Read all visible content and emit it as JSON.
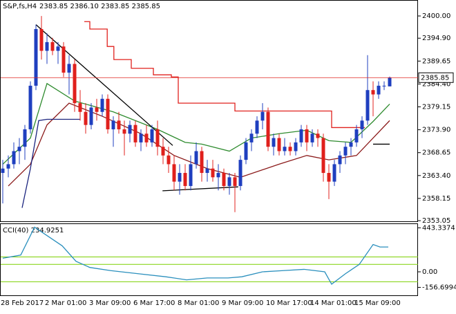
{
  "chart_data": [
    {
      "type": "candlestick",
      "title": "S&P,fs,H4",
      "ohlc_text": "2383.85 2386.10 2383.85 2385.85",
      "categories": [
        "28 Feb 2017",
        null,
        null,
        null,
        null,
        null,
        null,
        null,
        "2 Mar 01:00",
        null,
        null,
        null,
        null,
        null,
        null,
        null,
        "3 Mar 09:00",
        null,
        null,
        null,
        null,
        null,
        null,
        null,
        "6 Mar 17:00",
        null,
        null,
        null,
        null,
        null,
        null,
        null,
        "8 Mar 01:00",
        null,
        null,
        null,
        null,
        null,
        null,
        null,
        "9 Mar 09:00",
        null,
        null,
        null,
        null,
        null,
        null,
        null,
        "10 Mar 17:00",
        null,
        null,
        null,
        null,
        null,
        null,
        null,
        "14 Mar 01:00",
        null,
        null,
        null,
        null,
        null,
        null,
        null,
        "15 Mar 09:00",
        null,
        null,
        null,
        null,
        null,
        null
      ],
      "open": [
        2364,
        2365,
        2366,
        2369,
        2370,
        2374,
        2384,
        2397,
        2392,
        2394,
        2392,
        2393,
        2387,
        2389,
        2380,
        2378,
        2375,
        2379,
        2378,
        2381,
        2374,
        2376,
        2374,
        2373,
        2375,
        2371,
        2373,
        2371,
        2374,
        2370,
        2368,
        2366,
        2362,
        2364,
        2361,
        2366,
        2369,
        2364,
        2365,
        2363,
        2364,
        2361,
        2363,
        2361,
        2367,
        2371,
        2373,
        2376,
        2378,
        2370,
        2372,
        2369,
        2370,
        2369,
        2371,
        2374,
        2371,
        2373,
        2372,
        2364,
        2362,
        2366,
        2368,
        2370,
        2371,
        2374,
        2376,
        2383,
        2382,
        2384,
        2383.85
      ],
      "high": [
        2367,
        2368,
        2371,
        2372,
        2375,
        2385,
        2398,
        2400,
        2396,
        2395,
        2394,
        2394,
        2391,
        2390,
        2383,
        2380,
        2380,
        2381,
        2382,
        2382,
        2377,
        2378,
        2376,
        2376,
        2376,
        2374,
        2375,
        2375,
        2376,
        2372,
        2370,
        2368,
        2366,
        2366,
        2368,
        2371,
        2370,
        2367,
        2367,
        2366,
        2365,
        2364,
        2364,
        2368,
        2372,
        2374,
        2377,
        2380,
        2379,
        2373,
        2373,
        2372,
        2371,
        2372,
        2375,
        2375,
        2374,
        2374,
        2373,
        2366,
        2367,
        2369,
        2371,
        2372,
        2375,
        2377,
        2391,
        2385,
        2385,
        2385,
        2386.1
      ],
      "low": [
        2357,
        2363,
        2365,
        2366,
        2367,
        2373,
        2383,
        2390,
        2389,
        2391,
        2389,
        2386,
        2382,
        2378,
        2376,
        2373,
        2374,
        2376,
        2377,
        2373,
        2370,
        2373,
        2368,
        2371,
        2370,
        2369,
        2370,
        2370,
        2368,
        2366,
        2364,
        2360,
        2359,
        2360,
        2360,
        2365,
        2362,
        2362,
        2362,
        2360,
        2360,
        2359,
        2355,
        2360,
        2366,
        2369,
        2372,
        2374,
        2369,
        2368,
        2368,
        2368,
        2368,
        2368,
        2370,
        2369,
        2370,
        2370,
        2362,
        2358,
        2361,
        2364,
        2366,
        2368,
        2370,
        2372,
        2375,
        2377,
        2381,
        2383,
        2383.85
      ],
      "close": [
        2365,
        2366,
        2369,
        2370,
        2374,
        2384,
        2397,
        2392,
        2394,
        2392,
        2393,
        2387,
        2389,
        2380,
        2378,
        2375,
        2379,
        2378,
        2381,
        2374,
        2376,
        2374,
        2373,
        2375,
        2371,
        2373,
        2371,
        2374,
        2370,
        2368,
        2366,
        2362,
        2364,
        2361,
        2366,
        2369,
        2364,
        2365,
        2363,
        2364,
        2361,
        2363,
        2361,
        2367,
        2371,
        2373,
        2376,
        2378,
        2370,
        2372,
        2369,
        2370,
        2369,
        2371,
        2374,
        2371,
        2373,
        2372,
        2364,
        2362,
        2366,
        2368,
        2370,
        2371,
        2374,
        2376,
        2383,
        2382,
        2384,
        2384,
        2385.85
      ],
      "up_color": "#1f3fbf",
      "down_color": "#e0201c",
      "overlays": [
        {
          "color": "#2e8b2e",
          "step": false,
          "x": [
            0,
            5,
            8,
            13,
            20,
            28,
            33,
            36,
            41,
            45,
            50,
            55,
            59,
            63,
            67,
            70
          ],
          "values": [
            2366,
            2372,
            2384.5,
            2380.5,
            2378,
            2374,
            2371,
            2370.6,
            2369,
            2372,
            2373,
            2373.8,
            2371.4,
            2371,
            2375.8,
            2379.8
          ]
        },
        {
          "color": "#8b1a1a",
          "step": false,
          "x": [
            1,
            5,
            8,
            12,
            18,
            25,
            31,
            37,
            43,
            50,
            55,
            59,
            64,
            67,
            70
          ],
          "values": [
            2361,
            2366,
            2375,
            2380,
            2377,
            2373,
            2368,
            2365,
            2363,
            2366,
            2368,
            2367,
            2368,
            2372,
            2376
          ]
        },
        {
          "color": "#e0201c",
          "step": true,
          "x": [
            14.75,
            15.75,
            18.9,
            20.1,
            23.25,
            27.25,
            30.5,
            31.75,
            42,
            59.5,
            65.5
          ],
          "values": [
            2398.7,
            2397,
            2393,
            2390,
            2388,
            2386.5,
            2386,
            2380,
            2378.2,
            2374.4,
            2374.4
          ]
        },
        {
          "color": "#1a237e",
          "step": false,
          "x": [
            3.5,
            5,
            6.5,
            8,
            14
          ],
          "values": [
            2356,
            2365,
            2376,
            2376.3,
            2376.3
          ]
        }
      ],
      "trendlines": [
        {
          "x": [
            6,
            30.75
          ],
          "values": [
            2398,
            2370.3
          ]
        },
        {
          "x": [
            28.9,
            42.6
          ],
          "values": [
            2359.9,
            2360.8
          ]
        },
        {
          "x": [
            67,
            70
          ],
          "values": [
            2370.6,
            2370.6
          ]
        }
      ],
      "last_price": {
        "value": 2385.85,
        "label": "2385.85"
      },
      "ylim": [
        2352.9,
        2403.5
      ],
      "yticks": [
        {
          "value": 2400,
          "label": "2400.00"
        },
        {
          "value": 2394.9,
          "label": "2394.90"
        },
        {
          "value": 2389.65,
          "label": "2389.65"
        },
        {
          "value": 2384.4,
          "label": "2384.40"
        },
        {
          "value": 2379.15,
          "label": "2379.15"
        },
        {
          "value": 2373.9,
          "label": "2373.90"
        },
        {
          "value": 2368.65,
          "label": "2368.65"
        },
        {
          "value": 2363.4,
          "label": "2363.40"
        },
        {
          "value": 2358.15,
          "label": "2358.15"
        },
        2353.05
      ]
    },
    {
      "type": "line",
      "title": "CCI(40) 234.9251",
      "color": "#2a8fbd",
      "x": [
        0,
        3.25,
        5.75,
        8.25,
        10.75,
        13.25,
        15.75,
        19.5,
        24.5,
        29.5,
        33.25,
        37,
        40.75,
        43.25,
        47,
        50.75,
        54.5,
        58.25,
        59.5,
        62,
        64.5,
        67,
        68.25,
        69.75
      ],
      "values": [
        137,
        169,
        450,
        356,
        262,
        106,
        44,
        12,
        -19,
        -50,
        -81,
        -62,
        -62,
        -50,
        0,
        12,
        25,
        0,
        -125,
        -19,
        75,
        275,
        250,
        250
      ],
      "levels": [
        150,
        75,
        -100
      ],
      "level_color": "#7cd000",
      "ylim": [
        -237,
        481
      ],
      "yticks": [
        443.3374,
        {
          "value": 0,
          "label": "0.00"
        },
        -156.6994
      ]
    }
  ]
}
